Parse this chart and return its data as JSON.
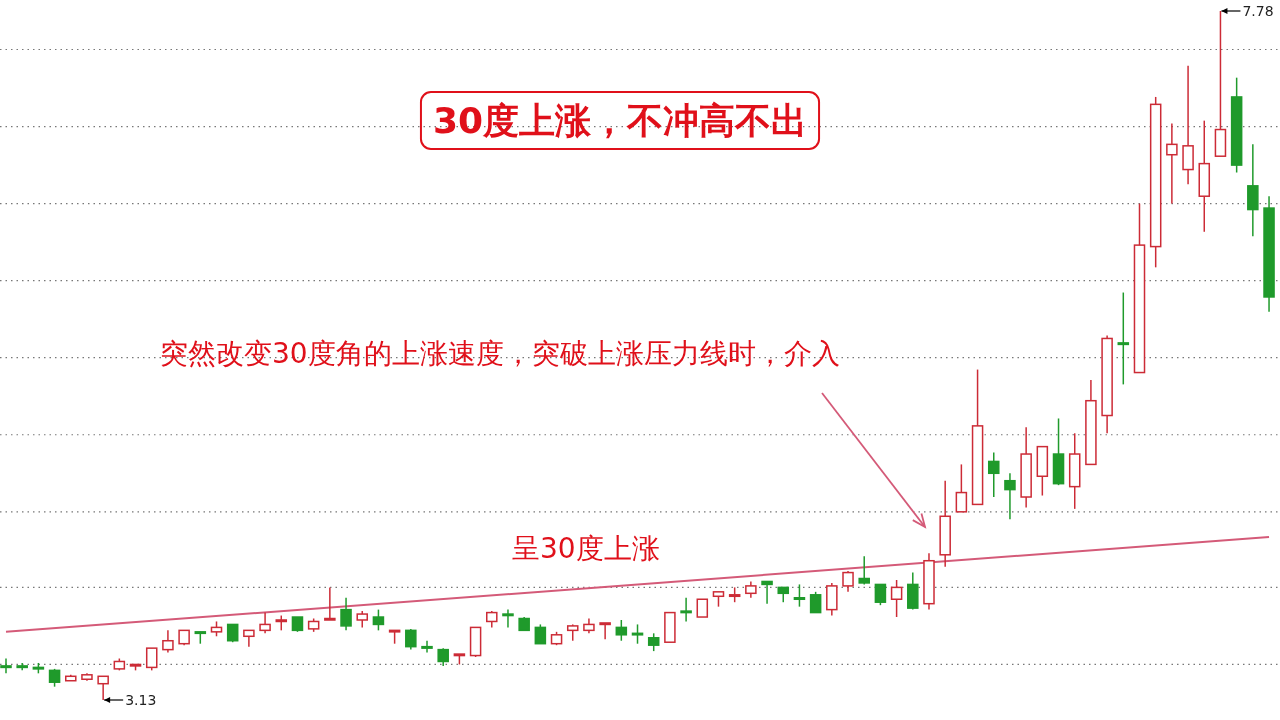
{
  "chart_data": {
    "type": "candlestick",
    "title": "30度上涨，不冲高不出",
    "categories": [
      null,
      null,
      null,
      null,
      null,
      null,
      null,
      null,
      null,
      null,
      null,
      null,
      null,
      null,
      null,
      null,
      null,
      null,
      null,
      null,
      null,
      null,
      null,
      null,
      null,
      null,
      null,
      null,
      null,
      null,
      null,
      null,
      null,
      null,
      null,
      null,
      null,
      null,
      null,
      null,
      null,
      null,
      null,
      null,
      null,
      null,
      null,
      null,
      null,
      null,
      null,
      null,
      null,
      null,
      null,
      null,
      null,
      null,
      null,
      null,
      null,
      null,
      null,
      null,
      null,
      null,
      null,
      null,
      null,
      null,
      null,
      null,
      null,
      null,
      null,
      null,
      null,
      null,
      null
    ],
    "ohlc": [
      [
        3.36,
        3.41,
        3.31,
        3.35
      ],
      [
        3.36,
        3.38,
        3.33,
        3.35
      ],
      [
        3.35,
        3.38,
        3.31,
        3.34
      ],
      [
        3.33,
        3.34,
        3.22,
        3.25
      ],
      [
        3.26,
        3.3,
        3.26,
        3.29
      ],
      [
        3.27,
        3.31,
        3.26,
        3.3
      ],
      [
        3.24,
        3.29,
        3.13,
        3.29
      ],
      [
        3.34,
        3.41,
        3.33,
        3.39
      ],
      [
        3.36,
        3.37,
        3.33,
        3.37
      ],
      [
        3.35,
        3.48,
        3.33,
        3.48
      ],
      [
        3.47,
        3.6,
        3.45,
        3.53
      ],
      [
        3.51,
        3.6,
        3.5,
        3.6
      ],
      [
        3.59,
        3.59,
        3.51,
        3.58
      ],
      [
        3.59,
        3.66,
        3.56,
        3.62
      ],
      [
        3.64,
        3.64,
        3.52,
        3.53
      ],
      [
        3.56,
        3.6,
        3.49,
        3.6
      ],
      [
        3.6,
        3.72,
        3.58,
        3.64
      ],
      [
        3.66,
        3.7,
        3.6,
        3.67
      ],
      [
        3.69,
        3.69,
        3.59,
        3.6
      ],
      [
        3.61,
        3.68,
        3.59,
        3.66
      ],
      [
        3.67,
        3.89,
        3.67,
        3.68
      ],
      [
        3.74,
        3.82,
        3.6,
        3.63
      ],
      [
        3.67,
        3.73,
        3.62,
        3.71
      ],
      [
        3.69,
        3.74,
        3.6,
        3.64
      ],
      [
        3.59,
        3.6,
        3.51,
        3.6
      ],
      [
        3.6,
        3.61,
        3.47,
        3.49
      ],
      [
        3.49,
        3.53,
        3.45,
        3.48
      ],
      [
        3.47,
        3.48,
        3.36,
        3.39
      ],
      [
        3.43,
        3.44,
        3.37,
        3.44
      ],
      [
        3.43,
        3.62,
        3.42,
        3.62
      ],
      [
        3.66,
        3.73,
        3.62,
        3.72
      ],
      [
        3.71,
        3.74,
        3.62,
        3.7
      ],
      [
        3.68,
        3.69,
        3.6,
        3.6
      ],
      [
        3.62,
        3.64,
        3.51,
        3.51
      ],
      [
        3.51,
        3.59,
        3.5,
        3.57
      ],
      [
        3.6,
        3.64,
        3.53,
        3.63
      ],
      [
        3.6,
        3.68,
        3.58,
        3.64
      ],
      [
        3.64,
        3.65,
        3.54,
        3.65
      ],
      [
        3.62,
        3.67,
        3.53,
        3.57
      ],
      [
        3.58,
        3.64,
        3.51,
        3.57
      ],
      [
        3.55,
        3.58,
        3.46,
        3.5
      ],
      [
        3.52,
        3.72,
        3.52,
        3.72
      ],
      [
        3.73,
        3.82,
        3.66,
        3.72
      ],
      [
        3.69,
        3.81,
        3.69,
        3.81
      ],
      [
        3.83,
        3.86,
        3.76,
        3.86
      ],
      [
        3.83,
        3.89,
        3.79,
        3.84
      ],
      [
        3.85,
        3.93,
        3.82,
        3.9
      ],
      [
        3.93,
        3.93,
        3.78,
        3.91
      ],
      [
        3.89,
        3.89,
        3.79,
        3.85
      ],
      [
        3.82,
        3.91,
        3.76,
        3.81
      ],
      [
        3.84,
        3.86,
        3.72,
        3.72
      ],
      [
        3.74,
        3.92,
        3.7,
        3.9
      ],
      [
        3.9,
        4.0,
        3.86,
        3.99
      ],
      [
        3.95,
        4.1,
        3.91,
        3.92
      ],
      [
        3.91,
        3.91,
        3.77,
        3.79
      ],
      [
        3.81,
        3.94,
        3.69,
        3.89
      ],
      [
        3.91,
        3.99,
        3.74,
        3.75
      ],
      [
        3.78,
        4.12,
        3.74,
        4.07
      ],
      [
        4.11,
        4.61,
        4.03,
        4.37
      ],
      [
        4.4,
        4.72,
        4.4,
        4.53
      ],
      [
        4.45,
        5.36,
        4.45,
        4.98
      ],
      [
        4.74,
        4.8,
        4.5,
        4.66
      ],
      [
        4.61,
        4.66,
        4.35,
        4.55
      ],
      [
        4.5,
        4.97,
        4.43,
        4.79
      ],
      [
        4.64,
        4.84,
        4.51,
        4.84
      ],
      [
        4.79,
        5.03,
        4.58,
        4.59
      ],
      [
        4.57,
        4.93,
        4.42,
        4.79
      ],
      [
        4.72,
        5.29,
        4.72,
        5.15
      ],
      [
        5.05,
        5.59,
        4.93,
        5.57
      ],
      [
        5.54,
        5.88,
        5.26,
        5.53
      ],
      [
        5.34,
        6.48,
        5.34,
        6.2
      ],
      [
        6.19,
        7.2,
        6.05,
        7.15
      ],
      [
        6.81,
        7.02,
        6.48,
        6.88
      ],
      [
        6.71,
        7.41,
        6.61,
        6.87
      ],
      [
        6.53,
        7.04,
        6.29,
        6.75
      ],
      [
        6.8,
        7.78,
        6.8,
        6.98
      ],
      [
        7.2,
        7.33,
        6.69,
        6.74
      ],
      [
        6.6,
        6.88,
        6.26,
        6.44
      ],
      [
        6.45,
        6.53,
        5.75,
        5.85
      ]
    ],
    "colors": [
      "#1f9a2b",
      "#1f9a2b",
      "#1f9a2b",
      "#1f9a2b",
      "#cc2b36",
      "#cc2b36",
      "#cc2b36",
      "#cc2b36",
      "#cc2b36",
      "#cc2b36",
      "#cc2b36",
      "#cc2b36",
      "#1f9a2b",
      "#cc2b36",
      "#1f9a2b",
      "#cc2b36",
      "#cc2b36",
      "#cc2b36",
      "#1f9a2b",
      "#cc2b36",
      "#cc2b36",
      "#1f9a2b",
      "#cc2b36",
      "#1f9a2b",
      "#cc2b36",
      "#1f9a2b",
      "#1f9a2b",
      "#1f9a2b",
      "#cc2b36",
      "#cc2b36",
      "#cc2b36",
      "#1f9a2b",
      "#1f9a2b",
      "#1f9a2b",
      "#cc2b36",
      "#cc2b36",
      "#cc2b36",
      "#cc2b36",
      "#1f9a2b",
      "#1f9a2b",
      "#1f9a2b",
      "#cc2b36",
      "#1f9a2b",
      "#cc2b36",
      "#cc2b36",
      "#cc2b36",
      "#cc2b36",
      "#1f9a2b",
      "#1f9a2b",
      "#1f9a2b",
      "#1f9a2b",
      "#cc2b36",
      "#cc2b36",
      "#1f9a2b",
      "#1f9a2b",
      "#cc2b36",
      "#1f9a2b",
      "#cc2b36",
      "#cc2b36",
      "#cc2b36",
      "#cc2b36",
      "#1f9a2b",
      "#1f9a2b",
      "#cc2b36",
      "#cc2b36",
      "#1f9a2b",
      "#cc2b36",
      "#cc2b36",
      "#cc2b36",
      "#1f9a2b",
      "#cc2b36",
      "#cc2b36",
      "#cc2b36",
      "#cc2b36",
      "#cc2b36",
      "#cc2b36",
      "#1f9a2b",
      "#1f9a2b",
      "#1f9a2b"
    ],
    "series": [
      {
        "type": "line",
        "color": "#d45a78",
        "values": [
          3.59,
          null,
          null,
          null,
          null,
          null,
          null,
          null,
          null,
          null,
          null,
          null,
          null,
          null,
          null,
          null,
          null,
          null,
          null,
          null,
          null,
          null,
          null,
          null,
          null,
          null,
          null,
          null,
          null,
          null,
          null,
          null,
          null,
          null,
          null,
          null,
          null,
          null,
          null,
          null,
          null,
          null,
          null,
          null,
          null,
          null,
          null,
          null,
          null,
          null,
          null,
          null,
          null,
          null,
          null,
          null,
          null,
          null,
          null,
          null,
          null,
          null,
          null,
          null,
          null,
          null,
          null,
          null,
          null,
          null,
          null,
          null,
          null,
          null,
          null,
          null,
          null,
          null,
          4.23
        ]
      }
    ],
    "yticks": [
      {
        "value": 3.37,
        "label": null
      },
      {
        "value": 3.89,
        "label": null
      },
      {
        "value": 4.4,
        "label": null
      },
      {
        "value": 4.92,
        "label": null
      },
      {
        "value": 5.44,
        "label": null
      },
      {
        "value": 5.96,
        "label": null
      },
      {
        "value": 6.48,
        "label": null
      },
      {
        "value": 7.0,
        "label": null
      },
      {
        "value": 7.52,
        "label": null
      }
    ],
    "grid": "y",
    "annotations": [
      "突然改变30度角的上涨速度，突破上涨压力线时，介入",
      "呈30度上涨",
      "3.13",
      "7.78"
    ]
  }
}
